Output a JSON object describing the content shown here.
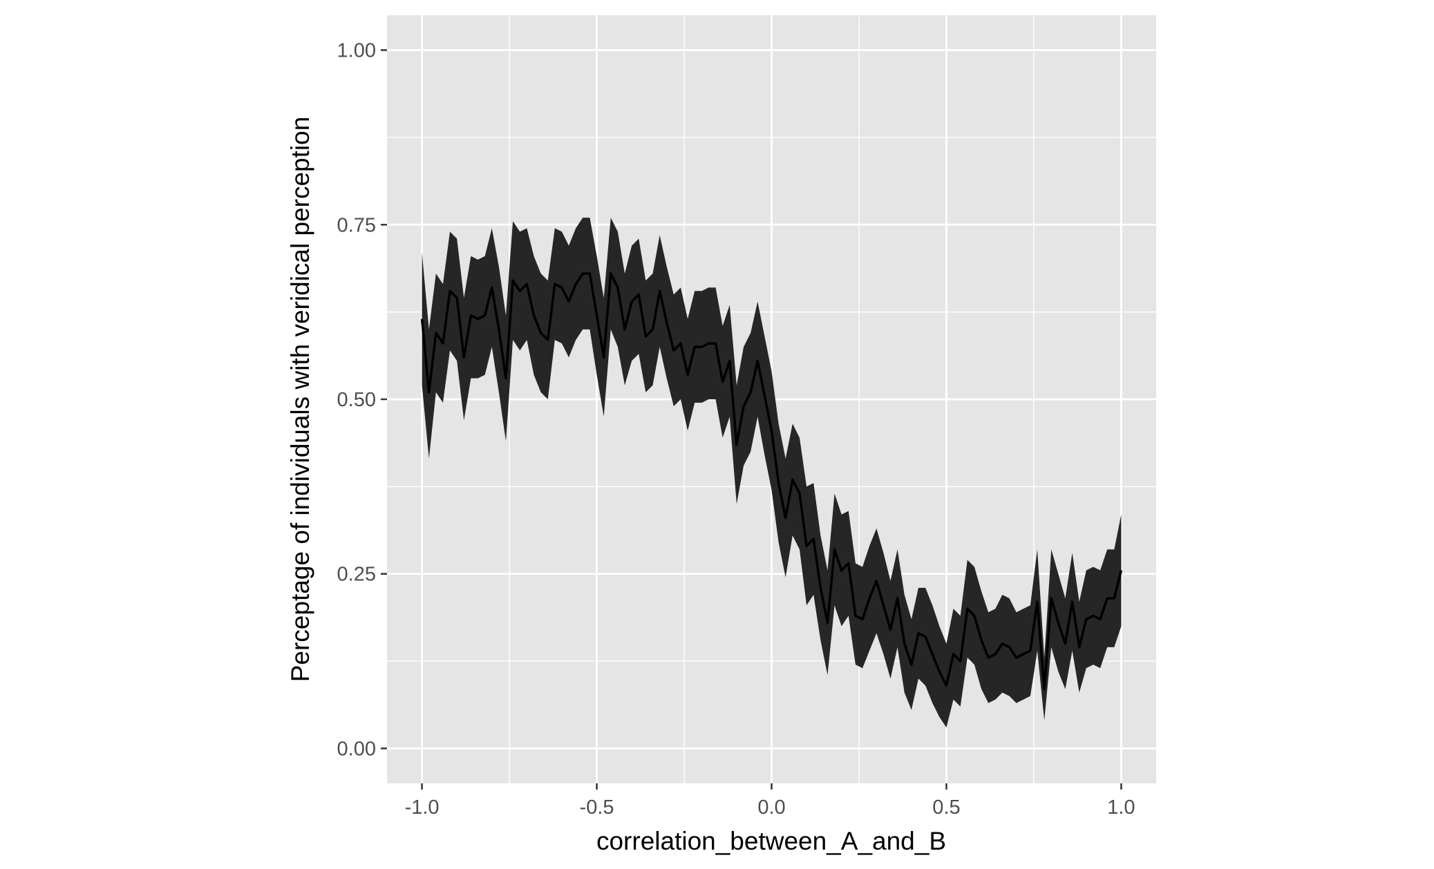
{
  "chart_data": {
    "type": "area",
    "title": "",
    "xlabel": "correlation_between_A_and_B",
    "ylabel": "Perceptage of individuals with veridical perception",
    "xlim": [
      -1.1,
      1.1
    ],
    "ylim": [
      -0.05,
      1.05
    ],
    "x_ticks": [
      -1.0,
      -0.5,
      0.0,
      0.5,
      1.0
    ],
    "x_tick_labels": [
      "-1.0",
      "-0.5",
      "0.0",
      "0.5",
      "1.0"
    ],
    "y_ticks": [
      0.0,
      0.25,
      0.5,
      0.75,
      1.0
    ],
    "y_tick_labels": [
      "0.00",
      "0.25",
      "0.50",
      "0.75",
      "1.00"
    ],
    "grid": true,
    "legend": "none",
    "colors": {
      "panel": "#e5e5e5",
      "grid": "#ffffff",
      "ribbon": "#262626",
      "line": "#000000"
    },
    "series": [
      {
        "x": [
          -1.0,
          -0.98,
          -0.96,
          -0.94,
          -0.92,
          -0.9,
          -0.88,
          -0.86,
          -0.84,
          -0.82,
          -0.8,
          -0.78,
          -0.76,
          -0.74,
          -0.72,
          -0.7,
          -0.68,
          -0.66,
          -0.64,
          -0.62,
          -0.6,
          -0.58,
          -0.56,
          -0.54,
          -0.52,
          -0.5,
          -0.48,
          -0.46,
          -0.44,
          -0.42,
          -0.4,
          -0.38,
          -0.36,
          -0.34,
          -0.32,
          -0.3,
          -0.28,
          -0.26,
          -0.24,
          -0.22,
          -0.2,
          -0.18,
          -0.16,
          -0.14,
          -0.12,
          -0.1,
          -0.08,
          -0.06,
          -0.04,
          -0.02,
          0.0,
          0.02,
          0.04,
          0.06,
          0.08,
          0.1,
          0.12,
          0.14,
          0.16,
          0.18,
          0.2,
          0.22,
          0.24,
          0.26,
          0.28,
          0.3,
          0.32,
          0.34,
          0.36,
          0.38,
          0.4,
          0.42,
          0.44,
          0.46,
          0.48,
          0.5,
          0.52,
          0.54,
          0.56,
          0.58,
          0.6,
          0.62,
          0.64,
          0.66,
          0.68,
          0.7,
          0.72,
          0.74,
          0.76,
          0.78,
          0.8,
          0.82,
          0.84,
          0.86,
          0.88,
          0.9,
          0.92,
          0.94,
          0.96,
          0.98,
          1.0
        ],
        "y": [
          0.615,
          0.51,
          0.595,
          0.58,
          0.655,
          0.645,
          0.56,
          0.62,
          0.615,
          0.62,
          0.66,
          0.6,
          0.53,
          0.67,
          0.655,
          0.665,
          0.62,
          0.595,
          0.585,
          0.665,
          0.66,
          0.64,
          0.665,
          0.68,
          0.68,
          0.62,
          0.56,
          0.68,
          0.66,
          0.6,
          0.64,
          0.65,
          0.59,
          0.6,
          0.655,
          0.61,
          0.57,
          0.58,
          0.535,
          0.575,
          0.575,
          0.58,
          0.58,
          0.525,
          0.555,
          0.435,
          0.49,
          0.51,
          0.555,
          0.505,
          0.455,
          0.38,
          0.33,
          0.385,
          0.365,
          0.29,
          0.3,
          0.23,
          0.18,
          0.285,
          0.255,
          0.265,
          0.19,
          0.185,
          0.215,
          0.24,
          0.205,
          0.17,
          0.215,
          0.15,
          0.12,
          0.165,
          0.16,
          0.135,
          0.11,
          0.09,
          0.135,
          0.125,
          0.2,
          0.19,
          0.155,
          0.13,
          0.135,
          0.15,
          0.145,
          0.13,
          0.135,
          0.14,
          0.21,
          0.085,
          0.215,
          0.18,
          0.15,
          0.21,
          0.145,
          0.185,
          0.19,
          0.185,
          0.215,
          0.215,
          0.255
        ],
        "lower": [
          0.52,
          0.415,
          0.51,
          0.495,
          0.57,
          0.555,
          0.47,
          0.53,
          0.53,
          0.535,
          0.575,
          0.51,
          0.44,
          0.585,
          0.57,
          0.585,
          0.535,
          0.51,
          0.5,
          0.585,
          0.58,
          0.56,
          0.585,
          0.6,
          0.6,
          0.535,
          0.475,
          0.6,
          0.575,
          0.52,
          0.555,
          0.565,
          0.51,
          0.52,
          0.575,
          0.53,
          0.49,
          0.5,
          0.455,
          0.495,
          0.495,
          0.5,
          0.5,
          0.445,
          0.475,
          0.35,
          0.405,
          0.425,
          0.475,
          0.42,
          0.37,
          0.295,
          0.245,
          0.305,
          0.285,
          0.205,
          0.22,
          0.155,
          0.105,
          0.205,
          0.175,
          0.19,
          0.12,
          0.115,
          0.14,
          0.165,
          0.135,
          0.1,
          0.145,
          0.08,
          0.055,
          0.1,
          0.09,
          0.065,
          0.045,
          0.03,
          0.07,
          0.06,
          0.13,
          0.12,
          0.085,
          0.065,
          0.07,
          0.08,
          0.075,
          0.065,
          0.07,
          0.075,
          0.14,
          0.04,
          0.145,
          0.11,
          0.085,
          0.14,
          0.08,
          0.115,
          0.12,
          0.115,
          0.145,
          0.145,
          0.175
        ],
        "upper": [
          0.71,
          0.6,
          0.68,
          0.665,
          0.74,
          0.73,
          0.645,
          0.705,
          0.7,
          0.705,
          0.745,
          0.69,
          0.62,
          0.755,
          0.74,
          0.745,
          0.705,
          0.68,
          0.67,
          0.745,
          0.74,
          0.72,
          0.745,
          0.76,
          0.76,
          0.705,
          0.645,
          0.76,
          0.74,
          0.68,
          0.72,
          0.73,
          0.67,
          0.68,
          0.735,
          0.69,
          0.65,
          0.66,
          0.615,
          0.655,
          0.655,
          0.66,
          0.66,
          0.605,
          0.635,
          0.52,
          0.575,
          0.595,
          0.64,
          0.59,
          0.54,
          0.465,
          0.415,
          0.465,
          0.445,
          0.375,
          0.38,
          0.305,
          0.255,
          0.365,
          0.335,
          0.34,
          0.265,
          0.26,
          0.29,
          0.315,
          0.28,
          0.24,
          0.285,
          0.22,
          0.185,
          0.23,
          0.23,
          0.205,
          0.175,
          0.15,
          0.2,
          0.19,
          0.27,
          0.26,
          0.225,
          0.195,
          0.2,
          0.22,
          0.215,
          0.195,
          0.2,
          0.205,
          0.285,
          0.13,
          0.285,
          0.25,
          0.215,
          0.28,
          0.21,
          0.255,
          0.26,
          0.255,
          0.285,
          0.285,
          0.335
        ]
      }
    ]
  }
}
